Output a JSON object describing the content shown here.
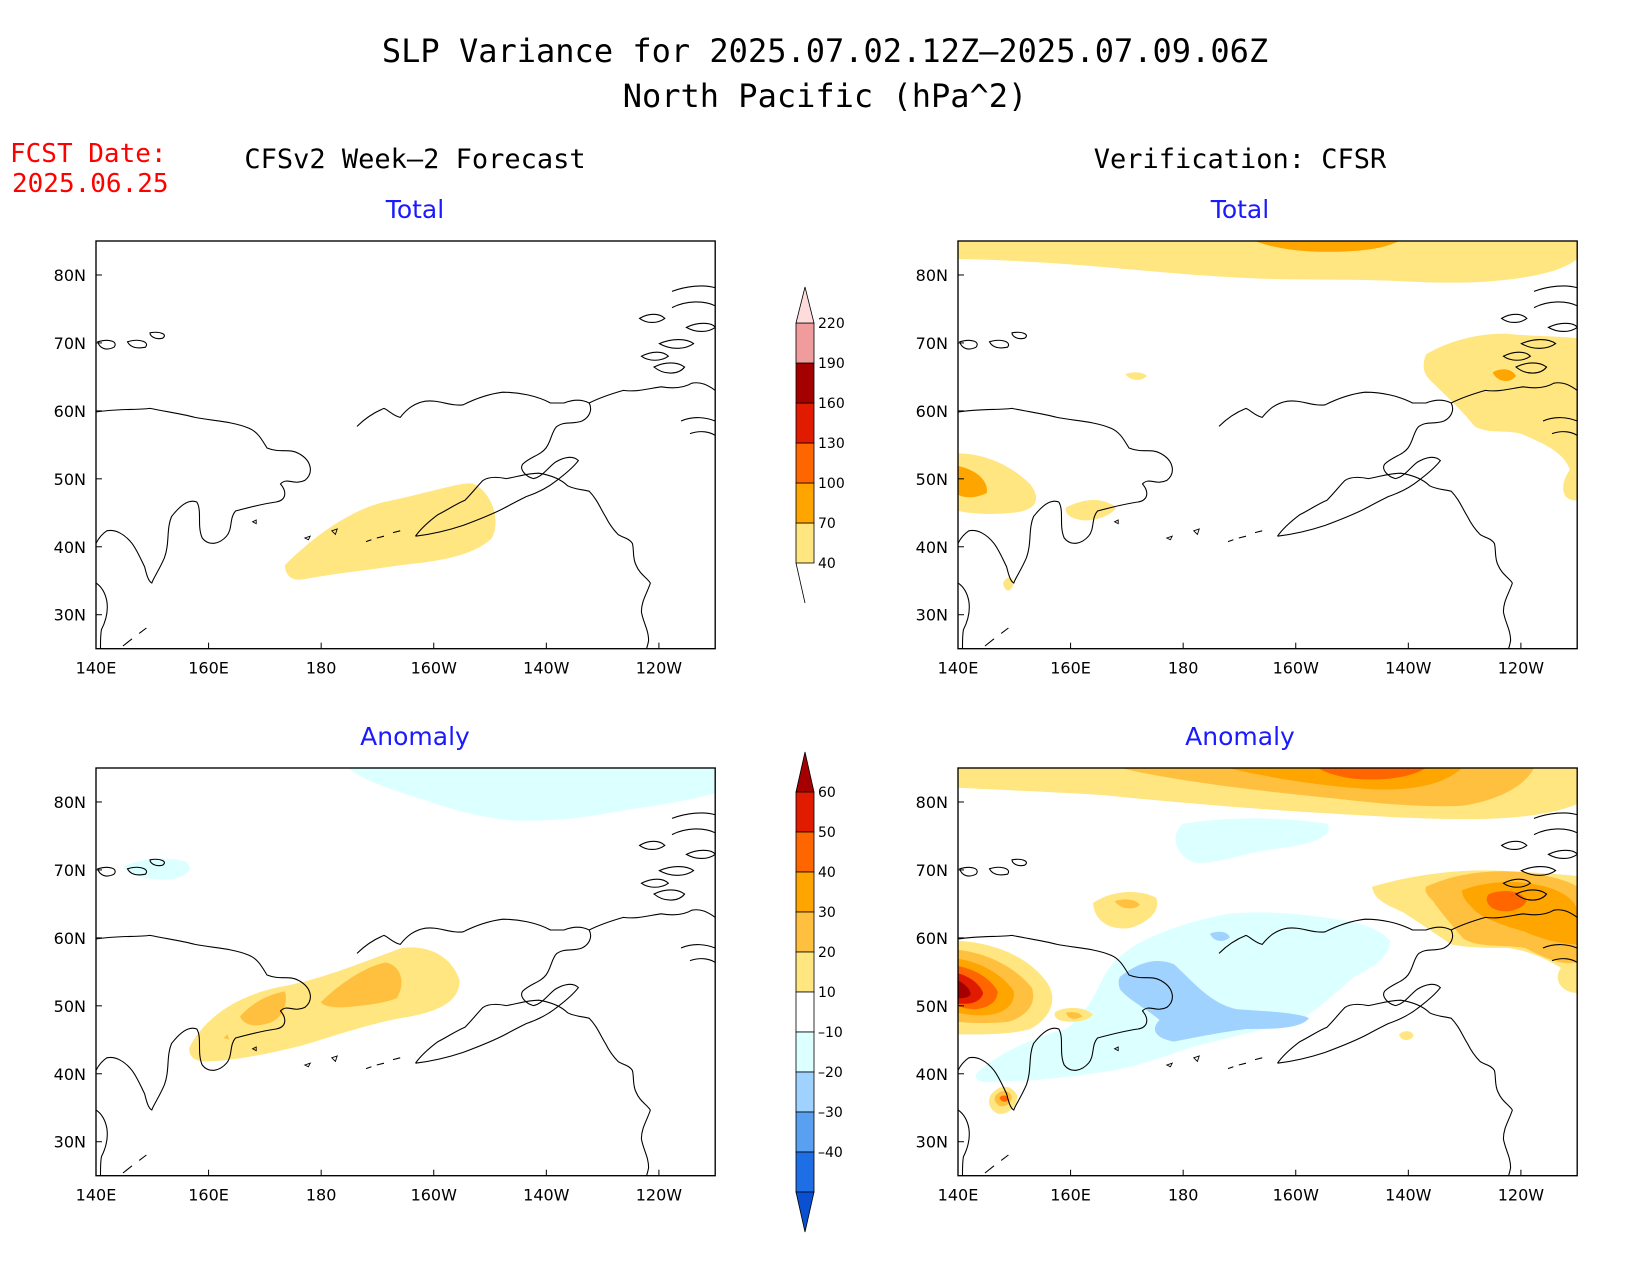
{
  "title_line1": "SLP Variance for 2025.07.02.12Z–2025.07.09.06Z",
  "title_line2": "North Pacific (hPa^2)",
  "fcst_date_label": "FCST Date:",
  "fcst_date_value": "2025.06.25",
  "left_column_title": "CFSv2 Week–2 Forecast",
  "right_column_title": "Verification: CFSR",
  "panel_titles": {
    "forecast_total": "Total",
    "verification_total": "Total",
    "forecast_anomaly": "Anomaly",
    "verification_anomaly": "Anomaly"
  },
  "colors": {
    "title_red": "#ff0000",
    "panel_title_blue": "#1a1aff"
  },
  "axes": {
    "lon_ticks": [
      "140E",
      "160E",
      "180",
      "160W",
      "140W",
      "120W"
    ],
    "lat_ticks": [
      "80N",
      "70N",
      "60N",
      "50N",
      "40N",
      "30N"
    ],
    "lon_range": [
      140,
      250
    ],
    "lat_range": [
      25,
      85
    ]
  },
  "total_colorbar": {
    "levels": [
      "40",
      "70",
      "100",
      "130",
      "160",
      "190",
      "220"
    ],
    "colors": [
      "#ffe680",
      "#ffa500",
      "#ff6600",
      "#e11b00",
      "#a50000",
      "#f19c9c",
      "#ffdcdc"
    ]
  },
  "anomaly_colorbar": {
    "levels": [
      "60",
      "50",
      "40",
      "30",
      "20",
      "10",
      "–10",
      "–20",
      "–30",
      "–40"
    ],
    "colors_top_to_bottom": [
      "#a50000",
      "#e11b00",
      "#ff6600",
      "#ffa500",
      "#ffc040",
      "#ffe680",
      "#ffffff",
      "#dcffff",
      "#a0d2ff",
      "#5aa0f0",
      "#1e6ee6",
      "#0a50d2"
    ]
  }
}
